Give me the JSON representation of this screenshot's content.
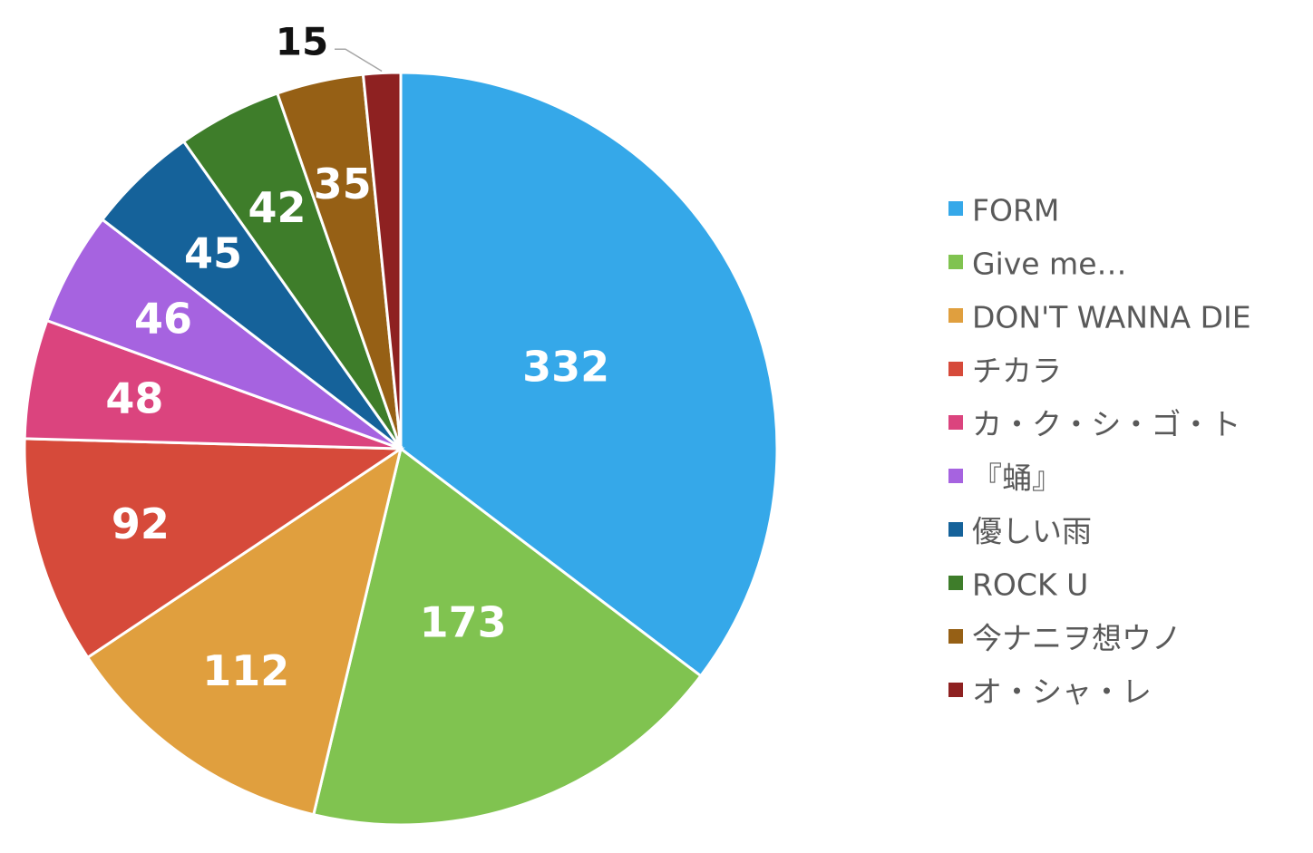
{
  "chart_data": {
    "type": "pie",
    "title": "",
    "start_angle_deg": 0,
    "direction": "clockwise",
    "legend_position": "right",
    "slices": [
      {
        "label": "FORM",
        "value": 332,
        "color": "#35A8E9"
      },
      {
        "label": "Give me…",
        "value": 173,
        "color": "#80C350"
      },
      {
        "label": "DON'T WANNA DIE",
        "value": 112,
        "color": "#E09F3E"
      },
      {
        "label": "チカラ",
        "value": 92,
        "color": "#D64A3A"
      },
      {
        "label": "カ・ク・シ・ゴ・ト",
        "value": 48,
        "color": "#DB447E"
      },
      {
        "label": "『蛹』",
        "value": 46,
        "color": "#A663E0"
      },
      {
        "label": "優しい雨",
        "value": 45,
        "color": "#15629A"
      },
      {
        "label": "ROCK U",
        "value": 42,
        "color": "#3E7D2A"
      },
      {
        "label": "今ナニヲ想ウノ",
        "value": 35,
        "color": "#966015"
      },
      {
        "label": "オ・シャ・レ",
        "value": 15,
        "color": "#8E2121"
      }
    ]
  }
}
